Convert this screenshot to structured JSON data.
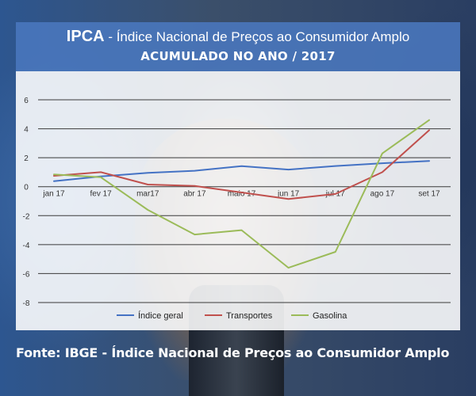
{
  "header": {
    "title_strong": "IPCA",
    "title_rest": " - Índice Nacional de Preços ao Consumidor Amplo",
    "subtitle": "ACUMULADO NO ANO / 2017"
  },
  "source_text": "Fonte: IBGE - Índice Nacional de Preços ao Consumidor Amplo",
  "chart_data": {
    "type": "line",
    "categories": [
      "jan 17",
      "fev 17",
      "mar17",
      "abr 17",
      "maio 17",
      "jun 17",
      "jul 17",
      "ago 17",
      "set 17"
    ],
    "ylim": [
      -8,
      6
    ],
    "yticks": [
      6,
      4,
      2,
      0,
      -2,
      -4,
      -6,
      -8
    ],
    "grid": true,
    "legend_position": "bottom",
    "series": [
      {
        "name": "Índice geral",
        "color": "#4472c4",
        "values": [
          0.38,
          0.71,
          0.96,
          1.1,
          1.42,
          1.18,
          1.43,
          1.62,
          1.78
        ]
      },
      {
        "name": "Transportes",
        "color": "#c0504d",
        "values": [
          0.75,
          1.0,
          0.15,
          0.05,
          -0.4,
          -0.85,
          -0.5,
          1.0,
          3.9
        ]
      },
      {
        "name": "Gasolina",
        "color": "#9bbb59",
        "values": [
          0.85,
          0.65,
          -1.6,
          -3.3,
          -3.0,
          -5.6,
          -4.5,
          2.3,
          4.6
        ]
      }
    ]
  }
}
